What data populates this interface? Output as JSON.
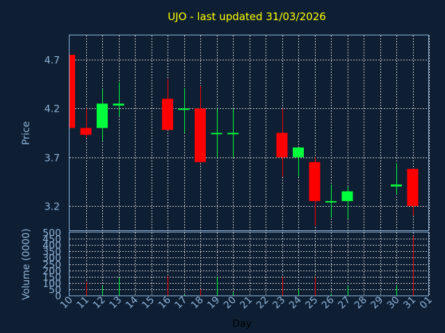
{
  "colors": {
    "background": "#0f1f33",
    "up": "#00ff3c",
    "down": "#ff0000",
    "title": "#ffff00",
    "axis_text": "#8fb4d9",
    "grid": "#c8c8c8",
    "xlabel": "#000000"
  },
  "chart_data": [
    {
      "type": "candlestick",
      "title": "UJO - last updated 31/03/2026",
      "ylabel": "Price",
      "ylim": [
        2.95,
        4.95
      ],
      "yticks": [
        3.2,
        3.7,
        4.2,
        4.7
      ],
      "grid": true,
      "x": [
        "10",
        "11",
        "12",
        "13",
        "14",
        "15",
        "16",
        "17",
        "18",
        "19",
        "20",
        "21",
        "22",
        "23",
        "24",
        "25",
        "26",
        "27",
        "28",
        "29",
        "30",
        "31",
        "01"
      ],
      "candles": [
        {
          "day": "10",
          "open": 4.75,
          "high": 4.75,
          "low": 4.0,
          "close": 4.0
        },
        {
          "day": "11",
          "open": 4.0,
          "high": 4.2,
          "low": 3.9,
          "close": 3.93
        },
        {
          "day": "12",
          "open": 4.0,
          "high": 4.4,
          "low": 3.87,
          "close": 4.25
        },
        {
          "day": "13",
          "open": 4.23,
          "high": 4.47,
          "low": 4.12,
          "close": 4.25
        },
        {
          "day": "16",
          "open": 4.3,
          "high": 4.5,
          "low": 3.98,
          "close": 3.98
        },
        {
          "day": "17",
          "open": 4.19,
          "high": 4.41,
          "low": 3.95,
          "close": 4.2
        },
        {
          "day": "18",
          "open": 4.2,
          "high": 4.43,
          "low": 3.65,
          "close": 3.65
        },
        {
          "day": "19",
          "open": 3.94,
          "high": 4.2,
          "low": 3.7,
          "close": 3.95
        },
        {
          "day": "20",
          "open": 3.94,
          "high": 4.2,
          "low": 3.7,
          "close": 3.95
        },
        {
          "day": "23",
          "open": 3.95,
          "high": 4.2,
          "low": 3.5,
          "close": 3.7
        },
        {
          "day": "24",
          "open": 3.7,
          "high": 3.8,
          "low": 3.5,
          "close": 3.8
        },
        {
          "day": "25",
          "open": 3.65,
          "high": 3.7,
          "low": 3.0,
          "close": 3.25
        },
        {
          "day": "26",
          "open": 3.24,
          "high": 3.42,
          "low": 3.08,
          "close": 3.25
        },
        {
          "day": "27",
          "open": 3.25,
          "high": 3.4,
          "low": 3.07,
          "close": 3.35
        },
        {
          "day": "30",
          "open": 3.4,
          "high": 3.64,
          "low": 3.32,
          "close": 3.42
        },
        {
          "day": "31",
          "open": 3.58,
          "high": 3.58,
          "low": 3.1,
          "close": 3.2
        }
      ]
    },
    {
      "type": "bar",
      "xlabel": "Day",
      "ylabel": "Volume (0000)",
      "ylim": [
        0,
        500
      ],
      "yticks": [
        0,
        50,
        100,
        150,
        200,
        250,
        300,
        350,
        400,
        450,
        500
      ],
      "grid": true,
      "categories": [
        "10",
        "11",
        "12",
        "13",
        "16",
        "17",
        "18",
        "19",
        "20",
        "23",
        "24",
        "25",
        "26",
        "27",
        "30",
        "31"
      ],
      "values": [
        0,
        110,
        75,
        140,
        155,
        10,
        50,
        150,
        25,
        150,
        50,
        145,
        15,
        75,
        80,
        470
      ],
      "bar_colors": [
        "#ff0000",
        "#ff0000",
        "#00ff3c",
        "#00ff3c",
        "#ff0000",
        "#00ff3c",
        "#ff0000",
        "#00ff3c",
        "#00ff3c",
        "#ff0000",
        "#00ff3c",
        "#ff0000",
        "#00ff3c",
        "#00ff3c",
        "#00ff3c",
        "#ff0000"
      ]
    }
  ]
}
